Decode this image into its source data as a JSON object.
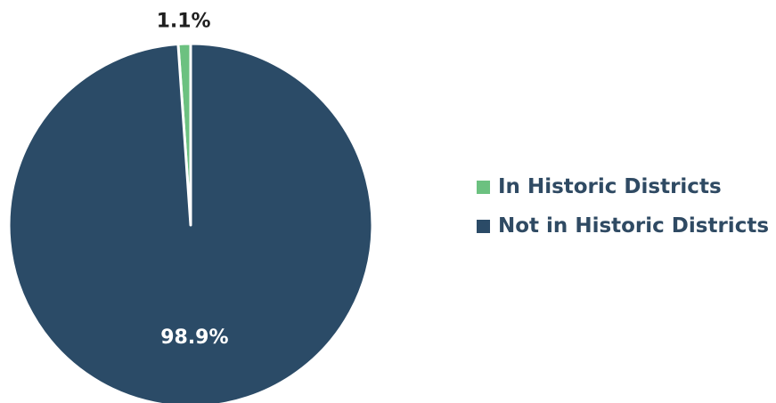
{
  "chart_data": {
    "type": "pie",
    "title": "",
    "categories": [
      "In Historic Districts",
      "Not in Historic Districts"
    ],
    "values": [
      1.1,
      98.9
    ],
    "value_labels": [
      "1.1%",
      "98.9%"
    ],
    "colors": [
      "#6cc180",
      "#2b4b67"
    ],
    "legend_position": "right"
  },
  "colors": {
    "outside_label": "#1f1f1f",
    "inside_label": "#ffffff",
    "slice_border": "#ffffff"
  }
}
